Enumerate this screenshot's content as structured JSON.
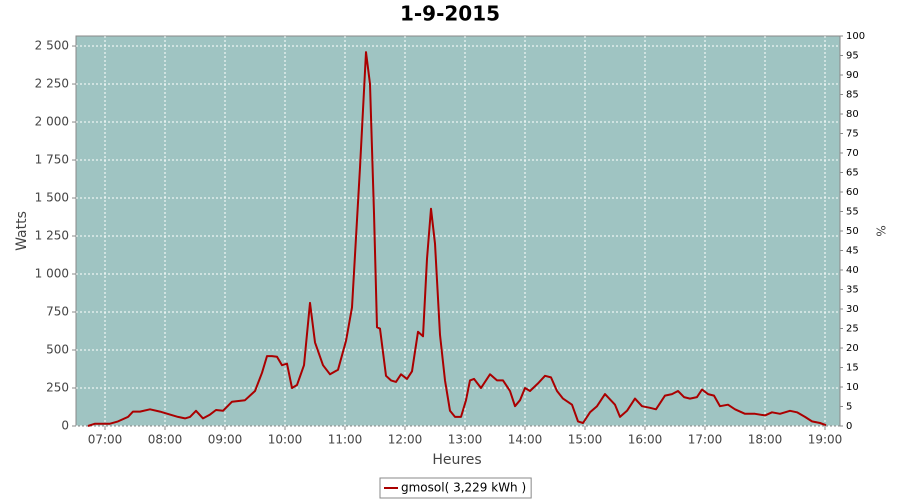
{
  "chart_data": {
    "type": "line",
    "title": "1-9-2015",
    "xlabel": "Heures",
    "ylabel": "Watts",
    "y2label": "%",
    "x": [
      "06:43",
      "06:50",
      "07:05",
      "07:13",
      "07:23",
      "07:28",
      "07:35",
      "07:45",
      "07:55",
      "08:05",
      "08:13",
      "08:20",
      "08:25",
      "08:31",
      "08:38",
      "08:45",
      "08:51",
      "08:58",
      "09:07",
      "09:20",
      "09:30",
      "09:37",
      "09:42",
      "09:47",
      "09:52",
      "09:57",
      "10:02",
      "10:07",
      "10:12",
      "10:19",
      "10:25",
      "10:30",
      "10:38",
      "10:45",
      "10:53",
      "11:01",
      "11:07",
      "11:15",
      "11:21",
      "11:25",
      "11:29",
      "11:32",
      "11:35",
      "11:41",
      "11:46",
      "11:51",
      "11:56",
      "12:02",
      "12:07",
      "12:13",
      "12:18",
      "12:22",
      "12:26",
      "12:30",
      "12:35",
      "12:40",
      "12:45",
      "12:50",
      "12:56",
      "13:01",
      "13:05",
      "13:09",
      "13:16",
      "13:25",
      "13:32",
      "13:38",
      "13:45",
      "13:50",
      "13:55",
      "14:00",
      "14:05",
      "14:13",
      "14:20",
      "14:26",
      "14:32",
      "14:38",
      "14:47",
      "14:53",
      "14:58",
      "15:05",
      "15:12",
      "15:20",
      "15:30",
      "15:35",
      "15:42",
      "15:50",
      "15:57",
      "16:05",
      "16:11",
      "16:20",
      "16:27",
      "16:33",
      "16:39",
      "16:45",
      "16:52",
      "16:57",
      "17:03",
      "17:09",
      "17:15",
      "17:23",
      "17:30",
      "17:40",
      "17:50",
      "18:00",
      "18:07",
      "18:15",
      "18:25",
      "18:32",
      "18:40",
      "18:47",
      "18:55",
      "19:01"
    ],
    "series": [
      {
        "name": "gmosol( 3,229 kWh )",
        "color": "#aa0000",
        "values": [
          0,
          15,
          15,
          30,
          60,
          95,
          95,
          110,
          95,
          75,
          60,
          50,
          60,
          100,
          50,
          75,
          105,
          100,
          160,
          170,
          230,
          350,
          460,
          460,
          455,
          400,
          410,
          250,
          270,
          400,
          810,
          550,
          400,
          340,
          370,
          560,
          780,
          1700,
          2460,
          2250,
          1400,
          650,
          640,
          330,
          300,
          290,
          340,
          310,
          360,
          620,
          590,
          1100,
          1430,
          1200,
          600,
          300,
          100,
          60,
          60,
          170,
          300,
          310,
          250,
          340,
          300,
          300,
          230,
          130,
          170,
          250,
          230,
          280,
          330,
          320,
          230,
          180,
          140,
          30,
          20,
          90,
          130,
          210,
          140,
          60,
          100,
          180,
          130,
          120,
          110,
          200,
          210,
          230,
          190,
          180,
          190,
          240,
          210,
          200,
          130,
          140,
          110,
          80,
          80,
          70,
          90,
          80,
          100,
          90,
          60,
          30,
          20,
          5
        ]
      }
    ],
    "xlim": [
      "06:31",
      "19:15"
    ],
    "xticks": [
      "07:00",
      "08:00",
      "09:00",
      "10:00",
      "11:00",
      "12:00",
      "13:00",
      "14:00",
      "15:00",
      "16:00",
      "17:00",
      "18:00",
      "19:00"
    ],
    "ylim": [
      0,
      2566
    ],
    "yticks": [
      0,
      250,
      500,
      750,
      {
        "value": 1000,
        "label": "1 000"
      },
      {
        "value": 1250,
        "label": "1 250"
      },
      {
        "value": 1500,
        "label": "1 500"
      },
      {
        "value": 1750,
        "label": "1 750"
      },
      {
        "value": 2000,
        "label": "2 000"
      },
      {
        "value": 2250,
        "label": "2 250"
      },
      {
        "value": 2500,
        "label": "2 500"
      }
    ],
    "y2lim": [
      0,
      100
    ],
    "y2ticks": [
      0,
      5,
      10,
      15,
      20,
      25,
      30,
      35,
      40,
      45,
      50,
      55,
      60,
      65,
      70,
      75,
      80,
      85,
      90,
      95,
      100
    ],
    "grid": true,
    "plot_background": "#9fc4c2",
    "legend": "bottom"
  }
}
